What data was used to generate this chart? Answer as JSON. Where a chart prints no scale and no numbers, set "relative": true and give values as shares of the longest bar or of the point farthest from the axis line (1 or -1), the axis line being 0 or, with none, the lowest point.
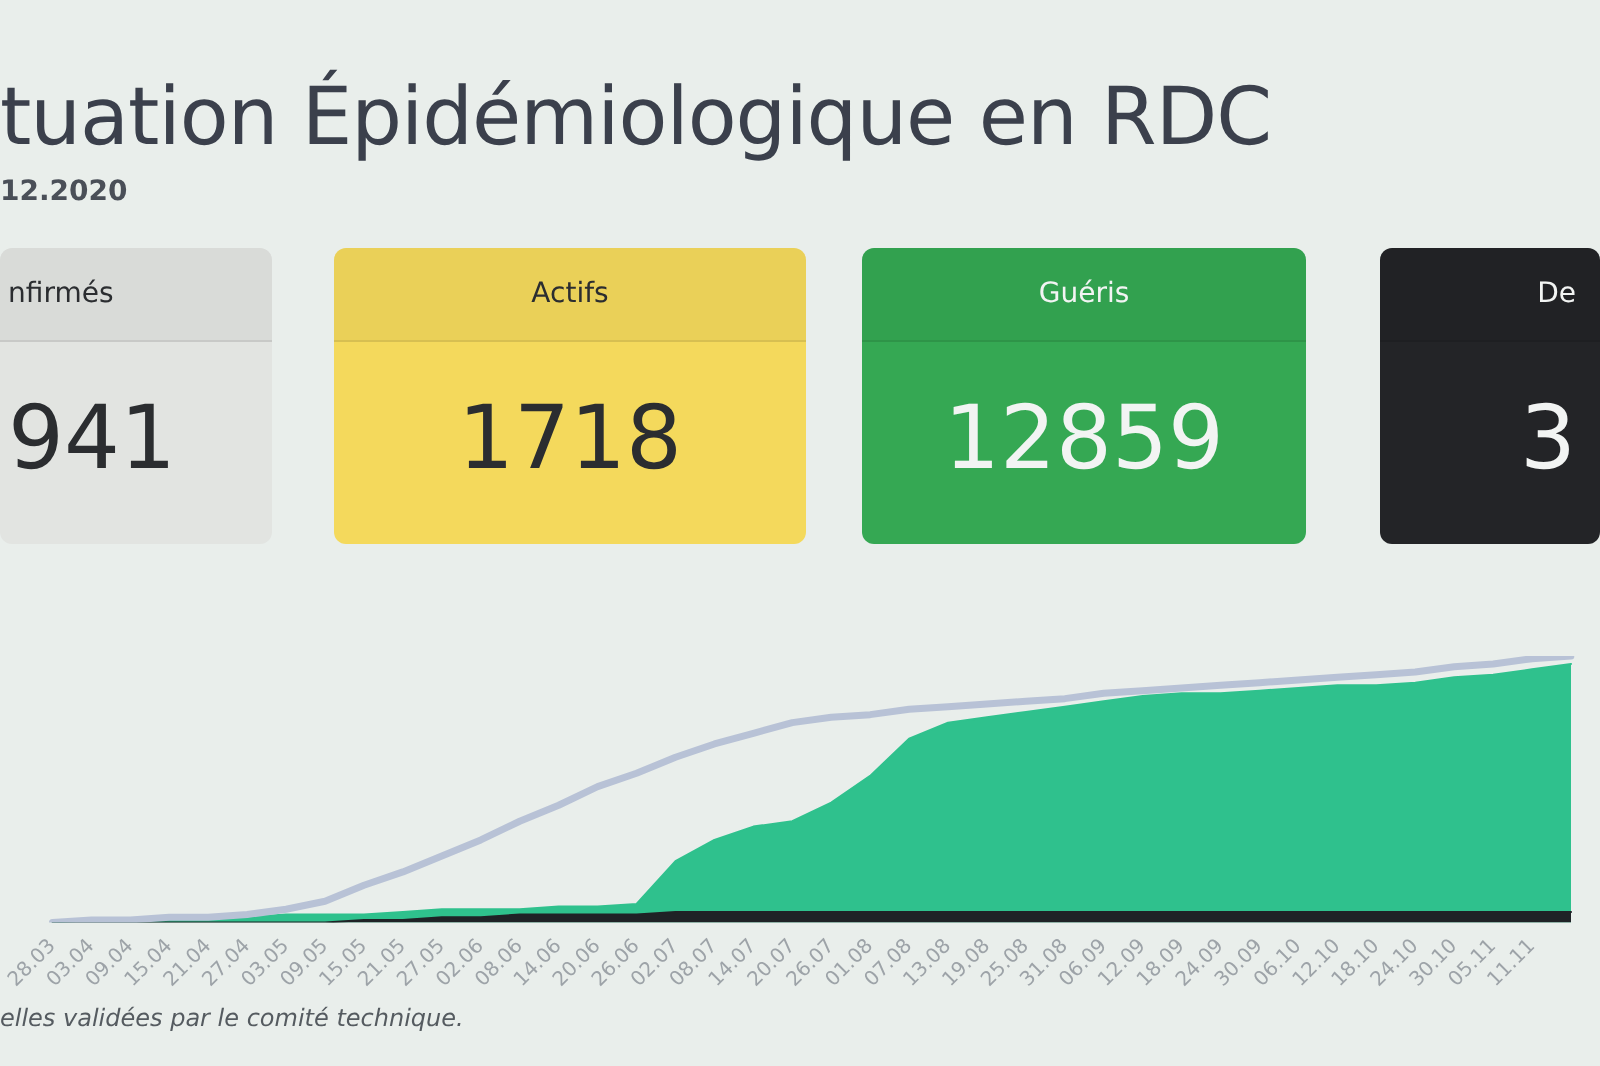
{
  "chart_data": [
    {
      "type": "other",
      "title": "tuation Épidémiologique en RDC",
      "subtitle": "12.2020",
      "categories": [
        "nfirmés",
        "Actifs",
        "Guéris",
        "De"
      ],
      "values": [
        941,
        1718,
        12859,
        3
      ],
      "data_labels": true,
      "colors": [
        "#e2e4e1",
        "#f4d95c",
        "#35a853",
        "#232427"
      ]
    },
    {
      "type": "area",
      "relative": true,
      "categories": [
        "28.03",
        "03.04",
        "09.04",
        "15.04",
        "21.04",
        "27.04",
        "03.05",
        "09.05",
        "15.05",
        "21.05",
        "27.05",
        "02.06",
        "08.06",
        "14.06",
        "20.06",
        "26.06",
        "02.07",
        "08.07",
        "14.07",
        "20.07",
        "26.07",
        "01.08",
        "07.08",
        "13.08",
        "19.08",
        "25.08",
        "31.08",
        "06.09",
        "12.09",
        "18.09",
        "24.09",
        "30.09",
        "06.10",
        "12.10",
        "18.10",
        "24.10",
        "30.10",
        "05.11",
        "11.11",
        null
      ],
      "series": [
        {
          "type": "line",
          "color": "#b8c2d6",
          "values": [
            0.0,
            0.01,
            0.01,
            0.02,
            0.02,
            0.03,
            0.05,
            0.08,
            0.14,
            0.19,
            0.25,
            0.31,
            0.38,
            0.44,
            0.51,
            0.56,
            0.62,
            0.67,
            0.71,
            0.75,
            0.77,
            0.78,
            0.8,
            0.81,
            0.82,
            0.83,
            0.84,
            0.86,
            0.87,
            0.88,
            0.89,
            0.9,
            0.91,
            0.92,
            0.93,
            0.94,
            0.96,
            0.97,
            0.99,
            1.0
          ]
        },
        {
          "color": "#2fc18d",
          "values": [
            0.0,
            0.01,
            0.01,
            0.01,
            0.02,
            0.02,
            0.03,
            0.03,
            0.03,
            0.04,
            0.05,
            0.05,
            0.05,
            0.06,
            0.06,
            0.07,
            0.23,
            0.31,
            0.36,
            0.38,
            0.45,
            0.55,
            0.69,
            0.75,
            0.77,
            0.79,
            0.81,
            0.83,
            0.85,
            0.86,
            0.86,
            0.87,
            0.88,
            0.89,
            0.89,
            0.9,
            0.92,
            0.93,
            0.95,
            0.97
          ]
        },
        {
          "color": "#1f2226",
          "values": [
            0.0,
            0.0,
            0.0,
            0.0,
            0.0,
            0.0,
            0.0,
            0.0,
            0.01,
            0.01,
            0.02,
            0.02,
            0.03,
            0.03,
            0.03,
            0.03,
            0.04,
            0.04,
            0.04,
            0.04,
            0.04,
            0.04,
            0.04,
            0.04,
            0.04,
            0.04,
            0.04,
            0.04,
            0.04,
            0.04,
            0.04,
            0.04,
            0.04,
            0.04,
            0.04,
            0.04,
            0.04,
            0.04,
            0.04,
            0.04
          ]
        }
      ],
      "marker": "none",
      "line_style": "solid",
      "annotations": [
        "elles validées par le comité technique."
      ]
    }
  ]
}
